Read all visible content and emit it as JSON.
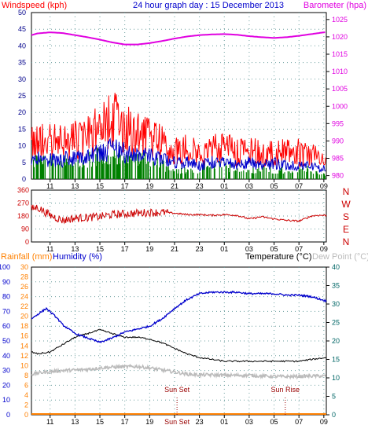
{
  "colors": {
    "wind": "#ff0000",
    "gust_avg": "#0000cc",
    "wind_low": "#008000",
    "barometer": "#e000e0",
    "direction": "#cc0000",
    "compass": "#cc0000",
    "humidity": "#0000cc",
    "temperature": "#000000",
    "dewpoint": "#bbbbbb",
    "rainfall": "#ff8000",
    "title": "#0000cc",
    "sun": "#990000",
    "axis_left": "#00008b",
    "axis_right": "#008080"
  },
  "chart_data": [
    {
      "type": "line",
      "name": "wind-barometer-panel",
      "title": "24 hour graph day : 15 December 2013",
      "left_label": "Windspeed (kph)",
      "right_label": "Barometer (hpa)",
      "left_ticks": [
        "0",
        "5",
        "10",
        "15",
        "20",
        "25",
        "30",
        "35",
        "40",
        "45",
        "50"
      ],
      "left_range": [
        0,
        50
      ],
      "right_ticks": [
        "980",
        "985",
        "990",
        "995",
        "1000",
        "1005",
        "1010",
        "1015",
        "1020",
        "1025"
      ],
      "right_range": [
        979,
        1027
      ],
      "time_ticks": [
        "11",
        "13",
        "15",
        "17",
        "19",
        "21",
        "23",
        "01",
        "03",
        "05",
        "07",
        "09"
      ],
      "time_tick_hours": [
        11,
        13,
        15,
        17,
        19,
        21,
        23,
        25,
        27,
        29,
        31,
        33
      ],
      "time_range_hours": [
        9.5,
        33.2
      ],
      "barometer": {
        "x_hours": [
          9.5,
          10,
          11,
          12,
          13,
          14,
          15,
          16,
          17,
          18,
          19,
          20,
          21,
          22,
          23,
          24,
          25,
          26,
          27,
          28,
          29,
          30,
          31,
          32,
          33.2
        ],
        "values": [
          1020.5,
          1021,
          1021.3,
          1021.1,
          1020.5,
          1019.9,
          1019.2,
          1018.4,
          1017.8,
          1017.8,
          1018.2,
          1018.8,
          1019.5,
          1020.1,
          1020.5,
          1020.7,
          1020.8,
          1020.6,
          1020.2,
          1019.9,
          1019.7,
          1019.9,
          1020.3,
          1020.8,
          1021.4
        ]
      },
      "wind_gust_envelope": {
        "x_hours": [
          9.5,
          10,
          11,
          12,
          13,
          14,
          15,
          16,
          17,
          18,
          19,
          20,
          21,
          22,
          23,
          24,
          25,
          26,
          27,
          28,
          29,
          30,
          31,
          32,
          33,
          33.2
        ],
        "values": [
          14,
          16,
          15,
          15,
          16,
          17,
          21,
          25,
          21,
          18,
          17,
          15,
          12,
          13,
          11,
          12,
          14,
          11,
          12,
          11,
          11,
          11,
          11,
          10,
          7,
          7
        ]
      },
      "wind_average": {
        "x_hours": [
          9.5,
          10,
          11,
          12,
          13,
          14,
          15,
          16,
          17,
          18,
          19,
          20,
          21,
          22,
          23,
          24,
          25,
          26,
          27,
          28,
          29,
          30,
          31,
          32,
          33,
          33.2
        ],
        "values": [
          5,
          6,
          6,
          6,
          6,
          7,
          8,
          9,
          8,
          7,
          7,
          6,
          5,
          5,
          4,
          5,
          6,
          4,
          5,
          4,
          5,
          4,
          4,
          4,
          3,
          3
        ]
      },
      "wind_low": {
        "x_hours": [
          9.5,
          10,
          11,
          12,
          13,
          14,
          15,
          16,
          17,
          18,
          19,
          20,
          21,
          22,
          23,
          24,
          25,
          26,
          27,
          28,
          29,
          30,
          31,
          32,
          33,
          33.2
        ],
        "values": [
          3,
          4,
          4,
          4,
          3,
          4,
          5,
          5,
          4,
          4,
          4,
          3,
          2,
          2,
          2,
          3,
          3,
          2,
          2,
          2,
          2,
          2,
          2,
          2,
          1,
          1
        ]
      }
    },
    {
      "type": "line",
      "name": "wind-direction-panel",
      "left_ticks": [
        "0",
        "90",
        "180",
        "270",
        "360"
      ],
      "left_range": [
        0,
        360
      ],
      "compass": [
        "N",
        "W",
        "S",
        "E",
        "N"
      ],
      "direction": {
        "x_hours": [
          9.5,
          10,
          11,
          12,
          13,
          14,
          15,
          16,
          17,
          18,
          19,
          20,
          21,
          22,
          23,
          24,
          25,
          26,
          27,
          28,
          29,
          30,
          31,
          32,
          32.5,
          33.2
        ],
        "values": [
          230,
          240,
          185,
          150,
          165,
          170,
          175,
          190,
          195,
          200,
          205,
          205,
          200,
          190,
          190,
          185,
          190,
          185,
          160,
          175,
          160,
          150,
          145,
          180,
          185,
          185
        ]
      }
    },
    {
      "type": "line",
      "name": "humidity-temperature-panel",
      "rain_label": "Rainfall (mm)",
      "humidity_label": "Humidity (%)",
      "temperature_label": "Temperature (°C)",
      "dewpoint_label": "Dew Point (°C)",
      "humidity_ticks": [
        "0",
        "10",
        "20",
        "30",
        "40",
        "50",
        "60",
        "70",
        "80",
        "90",
        "100"
      ],
      "humidity_range": [
        0,
        100
      ],
      "rain_ticks": [
        "0",
        "2",
        "4",
        "6",
        "8",
        "10",
        "12",
        "14",
        "16",
        "18",
        "20",
        "22",
        "24",
        "26",
        "28",
        "30"
      ],
      "rain_range": [
        0,
        30
      ],
      "temp_ticks": [
        "0",
        "5",
        "10",
        "15",
        "20",
        "25",
        "30",
        "35",
        "40"
      ],
      "temp_range": [
        0,
        40
      ],
      "sunset_label": "Sun Set",
      "sunrise_label": "Sun Rise",
      "sunset_hour": 21.2,
      "sunrise_hour": 29.9,
      "axis_sunset_label": "Sun Set",
      "humidity": {
        "x_hours": [
          9.5,
          10,
          10.7,
          11.5,
          12,
          13,
          14,
          15,
          16,
          17,
          18,
          19,
          20,
          21,
          22,
          23,
          24,
          25,
          26,
          27,
          28,
          29,
          30,
          31,
          32,
          33.2
        ],
        "values": [
          65,
          68,
          72,
          66,
          61,
          55,
          52,
          49,
          52,
          56,
          58,
          60,
          65,
          72,
          78,
          82,
          83,
          83,
          83,
          82,
          82,
          82,
          81,
          81,
          80,
          77
        ]
      },
      "temperature": {
        "x_hours": [
          9.5,
          10,
          11,
          12,
          13,
          14,
          15,
          16,
          17,
          18,
          19,
          20,
          21,
          22,
          23,
          24,
          25,
          26,
          27,
          28,
          29,
          30,
          31,
          32,
          33.2
        ],
        "values": [
          17,
          16.5,
          17,
          19,
          21,
          22,
          23,
          22,
          21,
          21,
          20.5,
          19.5,
          18,
          16.5,
          15.5,
          15,
          14.5,
          14.5,
          14.5,
          14.5,
          14.5,
          14.5,
          14.5,
          15,
          15.5
        ]
      },
      "dewpoint": {
        "x_hours": [
          9.5,
          10,
          11,
          12,
          13,
          14,
          15,
          16,
          17,
          18,
          19,
          20,
          21,
          22,
          23,
          24,
          25,
          26,
          27,
          28,
          29,
          30,
          31,
          32,
          33.2
        ],
        "values": [
          11,
          11.3,
          11.7,
          12,
          12.1,
          12.3,
          12.7,
          12.9,
          13,
          13.1,
          12.7,
          12.1,
          11.6,
          11,
          10.8,
          10.8,
          10.7,
          10.7,
          10.7,
          10.5,
          10.4,
          10.3,
          10.4,
          10.5,
          10.5
        ]
      },
      "rainfall": {
        "x_hours": [
          9.5,
          33.2
        ],
        "values": [
          0,
          0
        ]
      }
    }
  ]
}
